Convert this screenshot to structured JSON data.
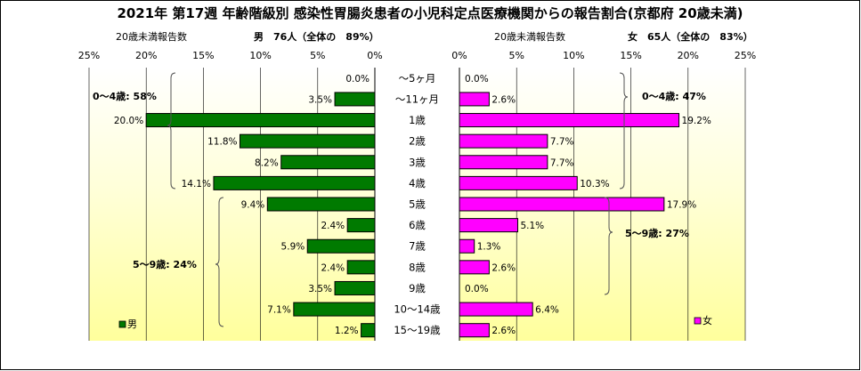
{
  "title": "2021年 第17週 年齢階級別 感染性胃腸炎患者の小児科定点医療機関からの報告割合(京都府 20歳未満)",
  "male": {
    "subheader": "20歳未満報告数",
    "heading": "男　76人（全体の　89%）",
    "legend": "男",
    "color": "#007a00",
    "ticks": [
      "25%",
      "20%",
      "15%",
      "10%",
      "5%",
      "0%"
    ]
  },
  "female": {
    "subheader": "20歳未満報告数",
    "heading": "女　65人（全体の　83%）",
    "legend": "女",
    "color": "#ff00ff",
    "ticks": [
      "0%",
      "5%",
      "10%",
      "15%",
      "20%",
      "25%"
    ]
  },
  "chart_data": {
    "type": "bar",
    "orientation": "horizontal",
    "layout": "population-pyramid",
    "xlim": [
      0,
      25
    ],
    "categories": [
      "～5ヶ月",
      "～11ヶ月",
      "1歳",
      "2歳",
      "3歳",
      "4歳",
      "5歳",
      "6歳",
      "7歳",
      "8歳",
      "9歳",
      "10～14歳",
      "15～19歳"
    ],
    "series": [
      {
        "name": "男",
        "values": [
          0.0,
          3.5,
          20.0,
          11.8,
          8.2,
          14.1,
          9.4,
          2.4,
          5.9,
          2.4,
          3.5,
          7.1,
          1.2
        ],
        "labels": [
          "0.0%",
          "3.5%",
          "20.0%",
          "11.8%",
          "8.2%",
          "14.1%",
          "9.4%",
          "2.4%",
          "5.9%",
          "2.4%",
          "3.5%",
          "7.1%",
          "1.2%"
        ]
      },
      {
        "name": "女",
        "values": [
          0.0,
          2.6,
          19.2,
          7.7,
          7.7,
          10.3,
          17.9,
          5.1,
          1.3,
          2.6,
          0.0,
          6.4,
          2.6
        ],
        "labels": [
          "0.0%",
          "2.6%",
          "19.2%",
          "7.7%",
          "7.7%",
          "10.3%",
          "17.9%",
          "5.1%",
          "1.3%",
          "2.6%",
          "0.0%",
          "6.4%",
          "2.6%"
        ]
      }
    ],
    "group_annotations": {
      "male": [
        "0～4歳: 58%",
        "5～9歳: 24%"
      ],
      "female": [
        "0～4歳: 47%",
        "5～9歳: 27%"
      ]
    }
  }
}
